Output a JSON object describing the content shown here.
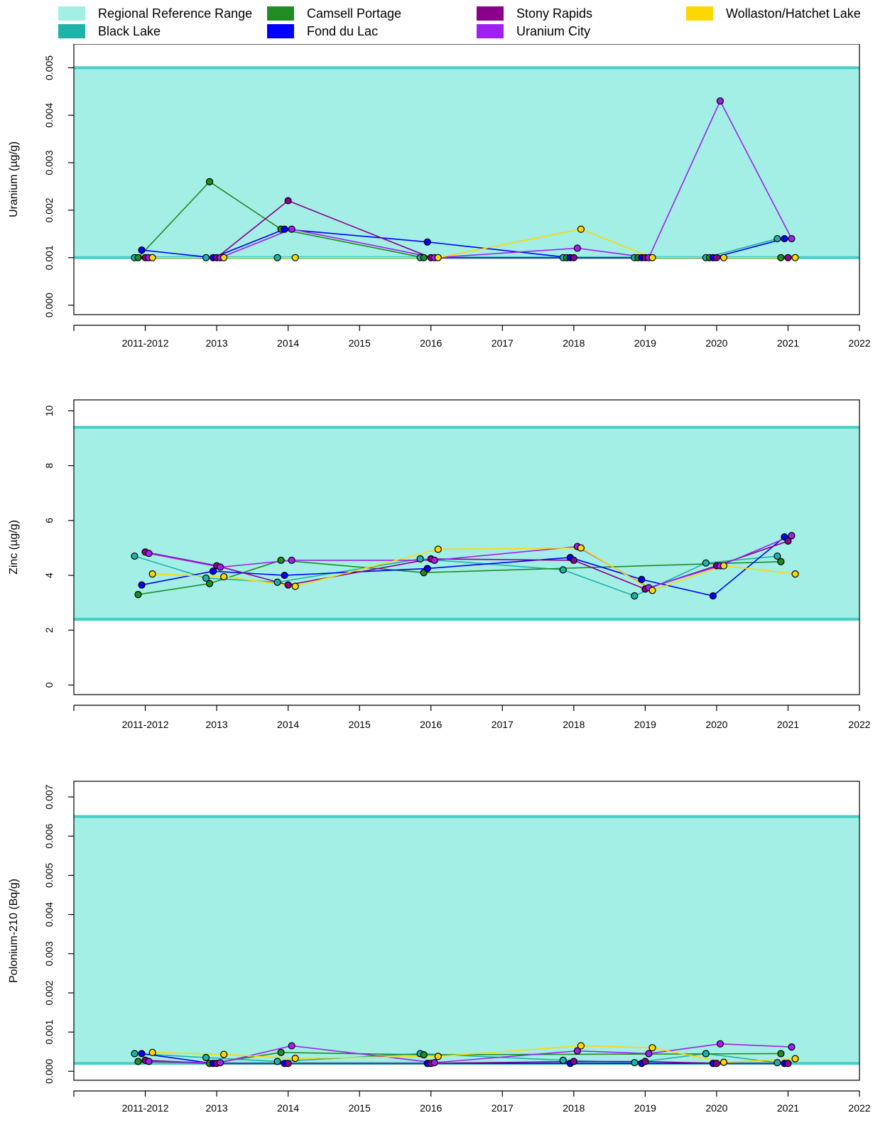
{
  "legend": {
    "items": [
      {
        "label": "Regional Reference Range",
        "color": "#a3efe6"
      },
      {
        "label": "Black Lake",
        "color": "#1fb2a8"
      },
      {
        "label": "Camsell Portage",
        "color": "#228b22"
      },
      {
        "label": "Fond du Lac",
        "color": "#0000ff"
      },
      {
        "label": "Stony Rapids",
        "color": "#8b008b"
      },
      {
        "label": "Uranium City",
        "color": "#a020f0"
      },
      {
        "label": "Wollaston/Hatchet Lake",
        "color": "#ffd700"
      }
    ]
  },
  "chart_data": [
    {
      "type": "line",
      "ylabel": "Uranium (µg/g)",
      "ylim": [
        -0.0002,
        0.0055
      ],
      "yticks": [
        0,
        0.001,
        0.002,
        0.003,
        0.004,
        0.005
      ],
      "ytick_labels": [
        "0.000",
        "0.001",
        "0.002",
        "0.003",
        "0.004",
        "0.005"
      ],
      "xlim": [
        2011,
        2022
      ],
      "xticks": [
        2012,
        2013,
        2014,
        2015,
        2016,
        2017,
        2018,
        2019,
        2020,
        2021,
        2022
      ],
      "xtick_labels": [
        "2011-2012",
        "2013",
        "2014",
        "2015",
        "2016",
        "2017",
        "2018",
        "2019",
        "2020",
        "2021",
        "2022"
      ],
      "reference_range": [
        0.001,
        0.005
      ],
      "series": [
        {
          "name": "Black Lake",
          "x": [
            2011.85,
            2012.85,
            2013.85,
            2015.85,
            2017.85,
            2018.85,
            2019.85,
            2020.85
          ],
          "y": [
            0.001,
            0.001,
            0.001,
            0.001,
            0.001,
            0.001,
            0.001,
            0.0014
          ]
        },
        {
          "name": "Camsell Portage",
          "x": [
            2011.9,
            2012.9,
            2013.9,
            2015.9,
            2017.9,
            2018.9,
            2019.9,
            2020.9
          ],
          "y": [
            0.001,
            0.0026,
            0.0016,
            0.001,
            0.001,
            0.001,
            0.001,
            0.001
          ]
        },
        {
          "name": "Fond du Lac",
          "x": [
            2011.95,
            2012.95,
            2013.95,
            2015.95,
            2017.95,
            2018.95,
            2019.95,
            2020.95
          ],
          "y": [
            0.00116,
            0.001,
            0.0016,
            0.00133,
            0.001,
            0.001,
            0.001,
            0.0014
          ]
        },
        {
          "name": "Stony Rapids",
          "x": [
            2012.0,
            2013.0,
            2014.0,
            2016.0,
            2018.0,
            2019.0,
            2020.0,
            2021.0
          ],
          "y": [
            0.001,
            0.001,
            0.0022,
            0.001,
            0.001,
            0.001,
            0.001,
            0.001
          ]
        },
        {
          "name": "Uranium City",
          "x": [
            2012.05,
            2013.05,
            2014.05,
            2016.05,
            2018.05,
            2019.05,
            2020.05,
            2021.05
          ],
          "y": [
            0.001,
            0.001,
            0.0016,
            0.001,
            0.0012,
            0.001,
            0.0043,
            0.0014
          ]
        },
        {
          "name": "Wollaston/Hatchet Lake",
          "x": [
            2012.1,
            2013.1,
            2014.1,
            2016.1,
            2018.1,
            2019.1,
            2020.1,
            2021.1
          ],
          "y": [
            0.001,
            0.001,
            0.001,
            0.001,
            0.0016,
            0.001,
            0.001,
            0.001
          ]
        }
      ]
    },
    {
      "type": "line",
      "ylabel": "Zinc (µg/g)",
      "ylim": [
        -0.35,
        10.4
      ],
      "yticks": [
        0,
        2,
        4,
        6,
        8,
        10
      ],
      "ytick_labels": [
        "0",
        "2",
        "4",
        "6",
        "8",
        "10"
      ],
      "xlim": [
        2011,
        2022
      ],
      "xticks": [
        2012,
        2013,
        2014,
        2015,
        2016,
        2017,
        2018,
        2019,
        2020,
        2021,
        2022
      ],
      "xtick_labels": [
        "2011-2012",
        "2013",
        "2014",
        "2015",
        "2016",
        "2017",
        "2018",
        "2019",
        "2020",
        "2021",
        "2022"
      ],
      "reference_range": [
        2.4,
        9.4
      ],
      "series": [
        {
          "name": "Black Lake",
          "x": [
            2011.85,
            2012.85,
            2013.85,
            2015.85,
            2017.85,
            2018.85,
            2019.85,
            2020.85
          ],
          "y": [
            4.7,
            3.9,
            3.75,
            4.6,
            4.2,
            3.25,
            4.45,
            4.7
          ]
        },
        {
          "name": "Camsell Portage",
          "x": [
            2011.9,
            2012.9,
            2013.9,
            2015.9,
            2017.9,
            2018.9,
            2019.9,
            2020.9
          ],
          "y": [
            3.3,
            3.7,
            4.55,
            4.1,
            null,
            null,
            null,
            4.5
          ]
        },
        {
          "name": "Fond du Lac",
          "x": [
            2011.95,
            2012.95,
            2013.95,
            2015.95,
            2017.95,
            2018.95,
            2019.95,
            2020.95
          ],
          "y": [
            3.65,
            4.15,
            4.0,
            4.25,
            4.65,
            3.85,
            3.25,
            5.4
          ]
        },
        {
          "name": "Stony Rapids",
          "x": [
            2012.0,
            2013.0,
            2014.0,
            2016.0,
            2018.0,
            2019.0,
            2020.0,
            2021.0
          ],
          "y": [
            4.85,
            4.35,
            3.65,
            4.6,
            4.55,
            3.5,
            4.35,
            5.25
          ]
        },
        {
          "name": "Uranium City",
          "x": [
            2012.05,
            2013.05,
            2014.05,
            2016.05,
            2018.05,
            2019.05,
            2020.05,
            2021.05
          ],
          "y": [
            4.8,
            4.3,
            4.55,
            4.55,
            5.05,
            3.55,
            4.35,
            5.45
          ]
        },
        {
          "name": "Wollaston/Hatchet Lake",
          "x": [
            2012.1,
            2013.1,
            2014.1,
            2016.1,
            2018.1,
            2019.1,
            2020.1,
            2021.1
          ],
          "y": [
            4.05,
            3.95,
            3.6,
            4.95,
            5.0,
            3.45,
            4.35,
            4.05
          ]
        }
      ]
    },
    {
      "type": "line",
      "ylabel": "Polonium-210 (Bq/g)",
      "ylim": [
        -0.00023,
        0.0074
      ],
      "yticks": [
        0,
        0.001,
        0.002,
        0.003,
        0.004,
        0.005,
        0.006,
        0.007
      ],
      "ytick_labels": [
        "0.000",
        "0.001",
        "0.002",
        "0.003",
        "0.004",
        "0.005",
        "0.006",
        "0.007"
      ],
      "xlim": [
        2011,
        2022
      ],
      "xticks": [
        2012,
        2013,
        2014,
        2015,
        2016,
        2017,
        2018,
        2019,
        2020,
        2021,
        2022
      ],
      "xtick_labels": [
        "2011-2012",
        "2013",
        "2014",
        "2015",
        "2016",
        "2017",
        "2018",
        "2019",
        "2020",
        "2021",
        "2022"
      ],
      "reference_range": [
        0.0002,
        0.0065
      ],
      "series": [
        {
          "name": "Black Lake",
          "x": [
            2011.85,
            2012.85,
            2013.85,
            2015.85,
            2017.85,
            2018.85,
            2019.85,
            2020.85
          ],
          "y": [
            0.00045,
            0.00035,
            0.00025,
            0.00045,
            0.00028,
            0.00022,
            0.00045,
            0.00022
          ]
        },
        {
          "name": "Camsell Portage",
          "x": [
            2011.9,
            2012.9,
            2013.9,
            2015.9,
            2017.9,
            2018.9,
            2019.9,
            2020.9
          ],
          "y": [
            0.00025,
            0.0002,
            0.00048,
            0.00042,
            null,
            null,
            null,
            0.00045
          ]
        },
        {
          "name": "Fond du Lac",
          "x": [
            2011.95,
            2012.95,
            2013.95,
            2015.95,
            2017.95,
            2018.95,
            2019.95,
            2020.95
          ],
          "y": [
            0.00045,
            0.0002,
            0.0002,
            0.0002,
            0.0002,
            0.0002,
            0.0002,
            0.0002
          ]
        },
        {
          "name": "Stony Rapids",
          "x": [
            2012.0,
            2013.0,
            2014.0,
            2016.0,
            2018.0,
            2019.0,
            2020.0,
            2021.0
          ],
          "y": [
            0.00028,
            0.0002,
            0.0002,
            0.0002,
            0.00025,
            0.00025,
            0.0002,
            0.0002
          ]
        },
        {
          "name": "Uranium City",
          "x": [
            2012.05,
            2013.05,
            2014.05,
            2016.05,
            2018.05,
            2019.05,
            2020.05,
            2021.05
          ],
          "y": [
            0.00025,
            0.00022,
            0.00065,
            0.00022,
            0.00052,
            0.00045,
            0.0007,
            0.00062
          ]
        },
        {
          "name": "Wollaston/Hatchet Lake",
          "x": [
            2012.1,
            2013.1,
            2014.1,
            2016.1,
            2018.1,
            2019.1,
            2020.1,
            2021.1
          ],
          "y": [
            0.00048,
            0.00043,
            0.00033,
            0.00038,
            0.00065,
            0.0006,
            0.00023,
            0.00032
          ]
        }
      ]
    }
  ]
}
